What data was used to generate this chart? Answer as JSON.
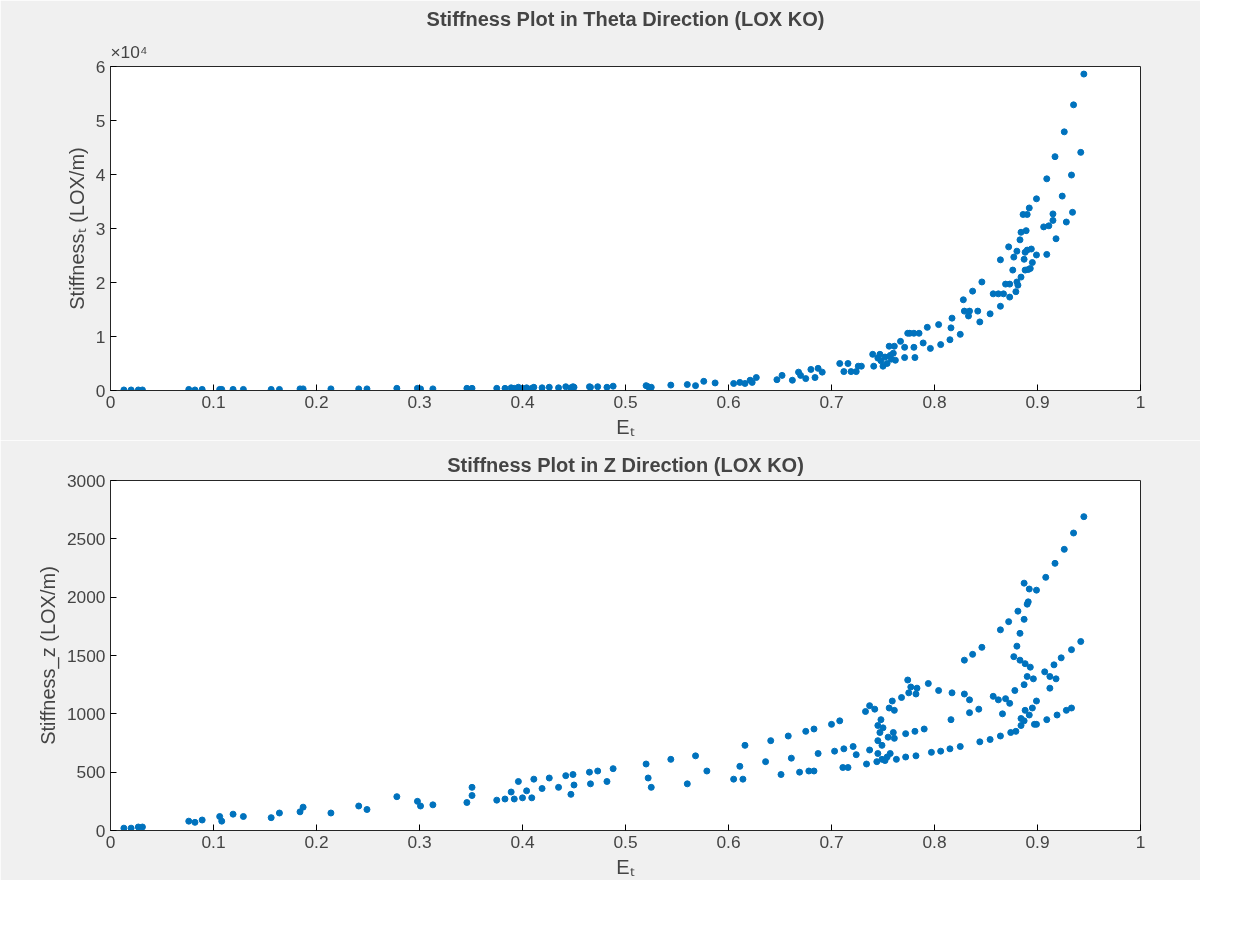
{
  "chart_data": [
    {
      "type": "scatter",
      "title": "Stiffness Plot in Theta Direction (LOX KO)",
      "xlabel": "Eₜ",
      "ylabel": "Stiffnessₜ (LOX/m)",
      "color": "#0072bd",
      "marker": "circle",
      "annotations": [
        "×10⁴"
      ],
      "xlim": [
        0,
        1
      ],
      "xticks": [
        0,
        0.1,
        0.2,
        0.3,
        0.4,
        0.5,
        0.6,
        0.7,
        0.8,
        0.9,
        1
      ],
      "ylim": [
        0,
        6
      ],
      "yticks": [
        0,
        1,
        2,
        3,
        4,
        5,
        6
      ],
      "x": [
        0.013,
        0.02,
        0.027,
        0.031,
        0.076,
        0.082,
        0.089,
        0.106,
        0.108,
        0.119,
        0.129,
        0.156,
        0.164,
        0.184,
        0.187,
        0.214,
        0.241,
        0.249,
        0.278,
        0.298,
        0.301,
        0.313,
        0.346,
        0.351,
        0.375,
        0.383,
        0.389,
        0.392,
        0.396,
        0.4,
        0.404,
        0.409,
        0.411,
        0.419,
        0.426,
        0.435,
        0.442,
        0.447,
        0.449,
        0.45,
        0.465,
        0.466,
        0.473,
        0.482,
        0.488,
        0.52,
        0.522,
        0.525,
        0.544,
        0.56,
        0.568,
        0.576,
        0.587,
        0.605,
        0.611,
        0.616,
        0.621,
        0.623,
        0.627,
        0.647,
        0.652,
        0.662,
        0.668,
        0.67,
        0.675,
        0.68,
        0.684,
        0.687,
        0.691,
        0.708,
        0.712,
        0.716,
        0.719,
        0.724,
        0.726,
        0.729,
        0.74,
        0.741,
        0.745,
        0.747,
        0.748,
        0.75,
        0.752,
        0.754,
        0.756,
        0.757,
        0.758,
        0.76,
        0.761,
        0.762,
        0.767,
        0.771,
        0.771,
        0.774,
        0.776,
        0.78,
        0.78,
        0.781,
        0.785,
        0.789,
        0.793,
        0.796,
        0.804,
        0.806,
        0.815,
        0.816,
        0.817,
        0.825,
        0.828,
        0.829,
        0.833,
        0.834,
        0.837,
        0.842,
        0.844,
        0.846,
        0.854,
        0.857,
        0.862,
        0.864,
        0.864,
        0.867,
        0.869,
        0.872,
        0.873,
        0.873,
        0.876,
        0.877,
        0.879,
        0.88,
        0.88,
        0.881,
        0.883,
        0.884,
        0.884,
        0.886,
        0.887,
        0.888,
        0.888,
        0.889,
        0.89,
        0.89,
        0.891,
        0.892,
        0.893,
        0.894,
        0.895,
        0.899,
        0.899,
        0.906,
        0.909,
        0.909,
        0.911,
        0.915,
        0.915,
        0.917,
        0.918,
        0.924,
        0.926,
        0.928,
        0.933,
        0.934,
        0.935,
        0.942,
        0.945
      ],
      "values": [
        0.01,
        0.01,
        0.01,
        0.01,
        0.02,
        0.01,
        0.02,
        0.02,
        0.02,
        0.02,
        0.02,
        0.02,
        0.02,
        0.03,
        0.03,
        0.03,
        0.03,
        0.03,
        0.04,
        0.04,
        0.03,
        0.03,
        0.04,
        0.04,
        0.04,
        0.04,
        0.05,
        0.04,
        0.06,
        0.04,
        0.05,
        0.04,
        0.06,
        0.05,
        0.06,
        0.05,
        0.07,
        0.05,
        0.07,
        0.06,
        0.07,
        0.06,
        0.07,
        0.06,
        0.08,
        0.09,
        0.07,
        0.06,
        0.1,
        0.11,
        0.09,
        0.17,
        0.14,
        0.13,
        0.15,
        0.13,
        0.19,
        0.15,
        0.24,
        0.2,
        0.28,
        0.19,
        0.34,
        0.28,
        0.22,
        0.39,
        0.24,
        0.41,
        0.34,
        0.5,
        0.35,
        0.5,
        0.35,
        0.35,
        0.45,
        0.45,
        0.67,
        0.45,
        0.6,
        0.67,
        0.55,
        0.45,
        0.62,
        0.5,
        0.82,
        0.65,
        0.58,
        0.69,
        0.82,
        0.56,
        0.91,
        0.61,
        0.8,
        1.06,
        1.06,
        1.06,
        0.8,
        0.61,
        1.06,
        0.88,
        1.17,
        0.78,
        1.22,
        0.85,
        0.94,
        1.16,
        1.34,
        1.04,
        1.68,
        1.47,
        1.38,
        1.47,
        1.84,
        1.47,
        1.27,
        2.01,
        1.42,
        1.79,
        1.79,
        2.42,
        1.56,
        1.79,
        1.97,
        2.66,
        1.97,
        1.73,
        2.23,
        2.47,
        1.83,
        2.01,
        2.58,
        1.95,
        2.79,
        2.93,
        2.1,
        3.26,
        2.43,
        2.23,
        2.56,
        2.96,
        2.6,
        3.26,
        2.24,
        3.38,
        2.26,
        2.62,
        2.37,
        3.55,
        2.51,
        3.03,
        2.52,
        3.92,
        3.05,
        3.15,
        3.27,
        4.33,
        2.81,
        3.6,
        4.79,
        3.12,
        3.99,
        3.3,
        5.29,
        4.41,
        5.86
      ]
    },
    {
      "type": "scatter",
      "title": "Stiffness Plot in Z Direction (LOX KO)",
      "xlabel": "Eₜ",
      "ylabel": "Stiffness_z (LOX/m)",
      "color": "#0072bd",
      "marker": "circle",
      "xlim": [
        0,
        1
      ],
      "xticks": [
        0,
        0.1,
        0.2,
        0.3,
        0.4,
        0.5,
        0.6,
        0.7,
        0.8,
        0.9,
        1
      ],
      "ylim": [
        0,
        3000
      ],
      "yticks": [
        0,
        500,
        1000,
        1500,
        2000,
        2500,
        3000
      ],
      "x": [
        0.013,
        0.02,
        0.027,
        0.031,
        0.076,
        0.082,
        0.089,
        0.106,
        0.108,
        0.119,
        0.129,
        0.156,
        0.164,
        0.184,
        0.187,
        0.214,
        0.241,
        0.249,
        0.278,
        0.298,
        0.301,
        0.313,
        0.346,
        0.351,
        0.351,
        0.375,
        0.383,
        0.389,
        0.392,
        0.396,
        0.4,
        0.404,
        0.409,
        0.411,
        0.419,
        0.426,
        0.435,
        0.442,
        0.447,
        0.449,
        0.45,
        0.465,
        0.466,
        0.473,
        0.482,
        0.488,
        0.52,
        0.522,
        0.525,
        0.544,
        0.56,
        0.568,
        0.579,
        0.605,
        0.611,
        0.614,
        0.616,
        0.636,
        0.641,
        0.651,
        0.658,
        0.661,
        0.669,
        0.675,
        0.678,
        0.683,
        0.683,
        0.687,
        0.7,
        0.703,
        0.708,
        0.711,
        0.712,
        0.716,
        0.721,
        0.724,
        0.733,
        0.734,
        0.737,
        0.737,
        0.742,
        0.744,
        0.745,
        0.745,
        0.745,
        0.747,
        0.748,
        0.749,
        0.749,
        0.75,
        0.752,
        0.754,
        0.755,
        0.756,
        0.757,
        0.759,
        0.76,
        0.761,
        0.761,
        0.763,
        0.768,
        0.772,
        0.772,
        0.774,
        0.775,
        0.777,
        0.781,
        0.782,
        0.782,
        0.783,
        0.79,
        0.794,
        0.797,
        0.804,
        0.806,
        0.815,
        0.816,
        0.817,
        0.825,
        0.829,
        0.829,
        0.834,
        0.834,
        0.837,
        0.843,
        0.844,
        0.846,
        0.854,
        0.857,
        0.862,
        0.864,
        0.864,
        0.866,
        0.869,
        0.872,
        0.873,
        0.874,
        0.877,
        0.878,
        0.879,
        0.88,
        0.881,
        0.883,
        0.883,
        0.884,
        0.884,
        0.887,
        0.887,
        0.887,
        0.887,
        0.888,
        0.888,
        0.89,
        0.89,
        0.891,
        0.892,
        0.892,
        0.893,
        0.895,
        0.896,
        0.897,
        0.899,
        0.899,
        0.899,
        0.907,
        0.908,
        0.909,
        0.912,
        0.912,
        0.916,
        0.917,
        0.918,
        0.919,
        0.923,
        0.926,
        0.928,
        0.933,
        0.933,
        0.935,
        0.942,
        0.945
      ],
      "values": [
        20,
        20,
        30,
        30,
        80,
        70,
        90,
        120,
        80,
        140,
        120,
        110,
        150,
        160,
        200,
        150,
        210,
        180,
        290,
        250,
        210,
        220,
        240,
        300,
        370,
        260,
        270,
        330,
        270,
        420,
        280,
        340,
        280,
        440,
        360,
        450,
        370,
        470,
        310,
        480,
        390,
        500,
        400,
        510,
        420,
        530,
        570,
        450,
        370,
        610,
        400,
        640,
        510,
        440,
        550,
        440,
        730,
        590,
        770,
        480,
        810,
        620,
        500,
        850,
        510,
        510,
        870,
        660,
        910,
        680,
        940,
        540,
        700,
        540,
        720,
        650,
        1020,
        570,
        690,
        1070,
        1040,
        590,
        900,
        770,
        660,
        840,
        950,
        730,
        610,
        880,
        600,
        630,
        800,
        1050,
        660,
        1110,
        840,
        790,
        1030,
        610,
        1140,
        830,
        630,
        1290,
        1180,
        1230,
        850,
        1170,
        640,
        1220,
        870,
        1260,
        670,
        1200,
        680,
        700,
        950,
        1180,
        720,
        1460,
        1170,
        1120,
        1010,
        1510,
        1040,
        760,
        1570,
        780,
        1150,
        1120,
        810,
        1720,
        1000,
        1130,
        1790,
        1090,
        840,
        1490,
        1200,
        850,
        1580,
        1880,
        1690,
        1460,
        960,
        900,
        2120,
        1810,
        1250,
        940,
        1430,
        1030,
        1940,
        1320,
        1960,
        2070,
        990,
        1400,
        1050,
        1300,
        910,
        2060,
        1110,
        910,
        1360,
        2170,
        950,
        1320,
        1220,
        1420,
        2290,
        1300,
        990,
        1480,
        2410,
        1030,
        1550,
        1050,
        2550,
        1620,
        2690
      ]
    }
  ]
}
